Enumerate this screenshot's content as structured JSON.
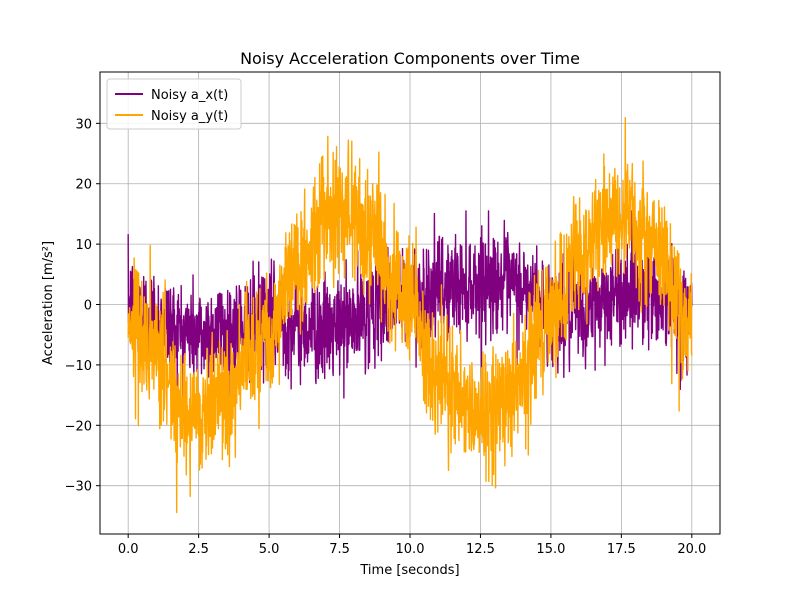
{
  "chart_data": {
    "type": "line",
    "title": "Noisy Acceleration Components over Time",
    "xlabel": "Time [seconds]",
    "ylabel": "Acceleration [m/s²]",
    "xlim": [
      -1.0,
      21.0
    ],
    "ylim": [
      -38.0,
      38.5
    ],
    "xticks": [
      0.0,
      2.5,
      5.0,
      7.5,
      10.0,
      12.5,
      15.0,
      17.5,
      20.0
    ],
    "xtick_labels": [
      "0.0",
      "2.5",
      "5.0",
      "7.5",
      "10.0",
      "12.5",
      "15.0",
      "17.5",
      "20.0"
    ],
    "yticks": [
      -30,
      -20,
      -10,
      0,
      10,
      20,
      30
    ],
    "ytick_labels": [
      "−30",
      "−20",
      "−10",
      "0",
      "10",
      "20",
      "30"
    ],
    "grid": true,
    "legend": "upper-left",
    "t_range": [
      0.0,
      20.0
    ],
    "series": [
      {
        "name": "Noisy a_x(t)",
        "color": "#800080",
        "baseline": [
          [
            0.0,
            0.0
          ],
          [
            1.0,
            -2.5
          ],
          [
            2.0,
            -4.5
          ],
          [
            2.5,
            -5.0
          ],
          [
            3.5,
            -4.0
          ],
          [
            5.0,
            -2.5
          ],
          [
            6.0,
            -3.5
          ],
          [
            7.0,
            -4.5
          ],
          [
            8.0,
            -3.0
          ],
          [
            9.0,
            0.5
          ],
          [
            10.0,
            1.0
          ],
          [
            11.0,
            2.5
          ],
          [
            12.0,
            3.5
          ],
          [
            13.0,
            4.0
          ],
          [
            14.0,
            2.5
          ],
          [
            15.0,
            -1.5
          ],
          [
            16.0,
            -2.0
          ],
          [
            17.0,
            1.0
          ],
          [
            18.0,
            3.0
          ],
          [
            19.0,
            1.0
          ],
          [
            20.0,
            -2.0
          ]
        ],
        "noise_sd": 4.2,
        "ymin": -19.5,
        "ymax": 15.5
      },
      {
        "name": "Noisy a_y(t)",
        "color": "#FFA500",
        "baseline": [
          [
            0.0,
            -2.0
          ],
          [
            1.0,
            -9.0
          ],
          [
            2.0,
            -17.0
          ],
          [
            2.5,
            -18.0
          ],
          [
            3.5,
            -14.0
          ],
          [
            5.0,
            -4.0
          ],
          [
            6.0,
            6.0
          ],
          [
            7.0,
            14.0
          ],
          [
            7.5,
            17.0
          ],
          [
            8.5,
            12.0
          ],
          [
            10.0,
            0.0
          ],
          [
            11.0,
            -10.0
          ],
          [
            12.0,
            -17.0
          ],
          [
            12.5,
            -18.0
          ],
          [
            13.5,
            -14.0
          ],
          [
            15.0,
            -2.0
          ],
          [
            16.0,
            8.0
          ],
          [
            17.0,
            14.0
          ],
          [
            17.5,
            15.5
          ],
          [
            18.5,
            11.0
          ],
          [
            20.0,
            -3.0
          ]
        ],
        "noise_sd": 5.2,
        "ymin": -34.5,
        "ymax": 34.5
      }
    ]
  }
}
